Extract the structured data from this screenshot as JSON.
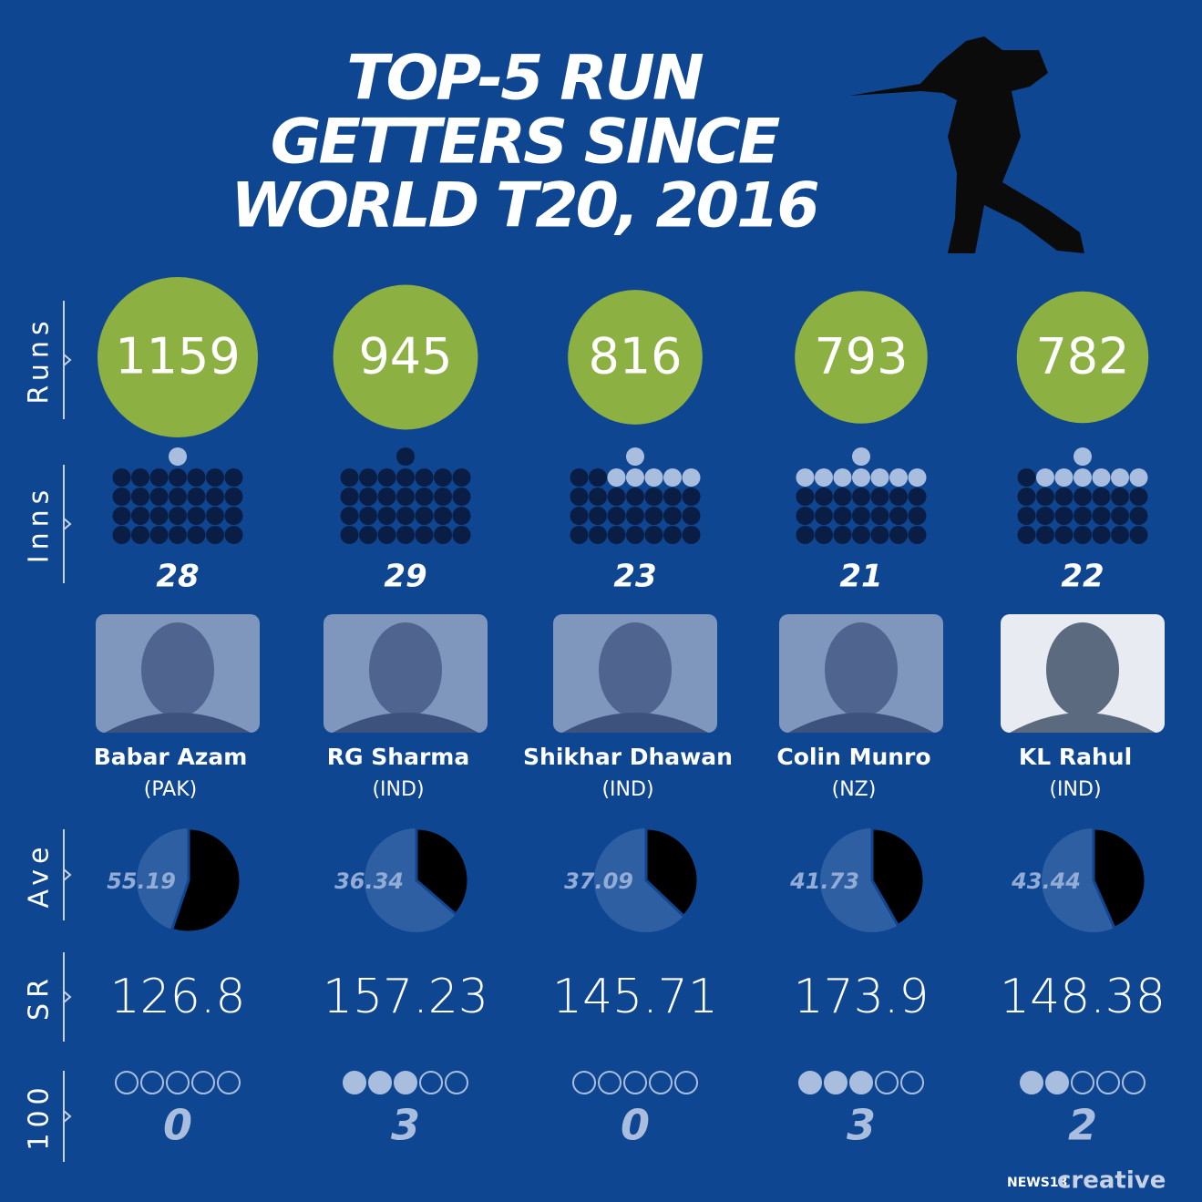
{
  "title": [
    "TOP-5 RUN",
    "GETTERS SINCE",
    "WORLD T20, 2016"
  ],
  "row_labels": {
    "runs": "Runs",
    "innings": "Inns",
    "average": "Ave",
    "strike_rate": "SR",
    "hundreds": "100"
  },
  "players": [
    {
      "name": "Babar Azam",
      "country": "(PAK)",
      "runs": 1159,
      "innings": 28,
      "average": 55.19,
      "strike_rate": 126.8,
      "hundreds": 0
    },
    {
      "name": "RG Sharma",
      "country": "(IND)",
      "runs": 945,
      "innings": 29,
      "average": 36.34,
      "strike_rate": 157.23,
      "hundreds": 3
    },
    {
      "name": "Shikhar Dhawan",
      "country": "(IND)",
      "runs": 816,
      "innings": 23,
      "average": 37.09,
      "strike_rate": 145.71,
      "hundreds": 0
    },
    {
      "name": "Colin Munro",
      "country": "(NZ)",
      "runs": 793,
      "innings": 21,
      "average": 41.73,
      "strike_rate": 173.9,
      "hundreds": 3
    },
    {
      "name": "KL Rahul",
      "country": "(IND)",
      "runs": 782,
      "innings": 22,
      "average": 43.44,
      "strike_rate": 148.38,
      "hundreds": 2
    }
  ],
  "footer": {
    "brand": "NEWS18",
    "label": "creative"
  }
}
